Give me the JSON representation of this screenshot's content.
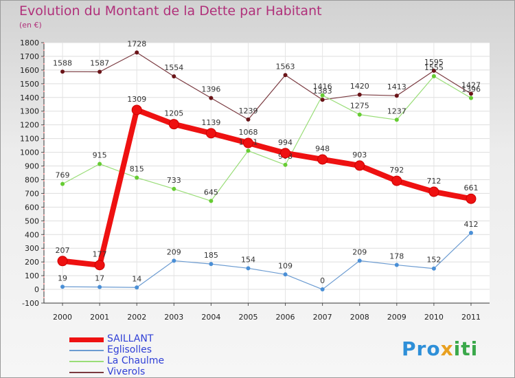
{
  "title": "Evolution du Montant de la Dette par Habitant",
  "subtitle": "(en €)",
  "logo_text": "Proxiti",
  "chart_data": {
    "type": "line",
    "title": "Evolution du Montant de la Dette par Habitant",
    "ylabel": "(en €)",
    "xlabel": "",
    "x": [
      "2000",
      "2001",
      "2002",
      "2003",
      "2004",
      "2005",
      "2006",
      "2007",
      "2008",
      "2009",
      "2010",
      "2011"
    ],
    "ylim": [
      -100,
      1800
    ],
    "yticks": [
      -100,
      0,
      100,
      200,
      300,
      400,
      500,
      600,
      700,
      800,
      900,
      1000,
      1100,
      1200,
      1300,
      1400,
      1500,
      1600,
      1700,
      1800
    ],
    "grid": true,
    "legend_position": "bottom-left",
    "series": [
      {
        "name": "SAILLANT",
        "color": "#ee1111",
        "marker": "#ee1111",
        "width": 8,
        "radius": 7,
        "values": [
          207,
          177,
          1309,
          1205,
          1139,
          1068,
          994,
          948,
          903,
          792,
          712,
          661
        ]
      },
      {
        "name": "Eglisolles",
        "color": "#6b9bd1",
        "marker": "#4a8fd6",
        "width": 1.2,
        "radius": 3,
        "values": [
          19,
          17,
          14,
          209,
          185,
          154,
          109,
          0,
          209,
          178,
          152,
          412
        ]
      },
      {
        "name": "La Chaulme",
        "color": "#99dd77",
        "marker": "#66cc33",
        "width": 1.2,
        "radius": 3,
        "values": [
          769,
          915,
          815,
          733,
          645,
          1011,
          908,
          1416,
          1275,
          1237,
          1555,
          1396
        ]
      },
      {
        "name": "Viverols",
        "color": "#7a3a40",
        "marker": "#6a1418",
        "width": 1.2,
        "radius": 3,
        "values": [
          1588,
          1587,
          1728,
          1554,
          1396,
          1239,
          1563,
          1383,
          1420,
          1413,
          1595,
          1427
        ]
      }
    ]
  }
}
